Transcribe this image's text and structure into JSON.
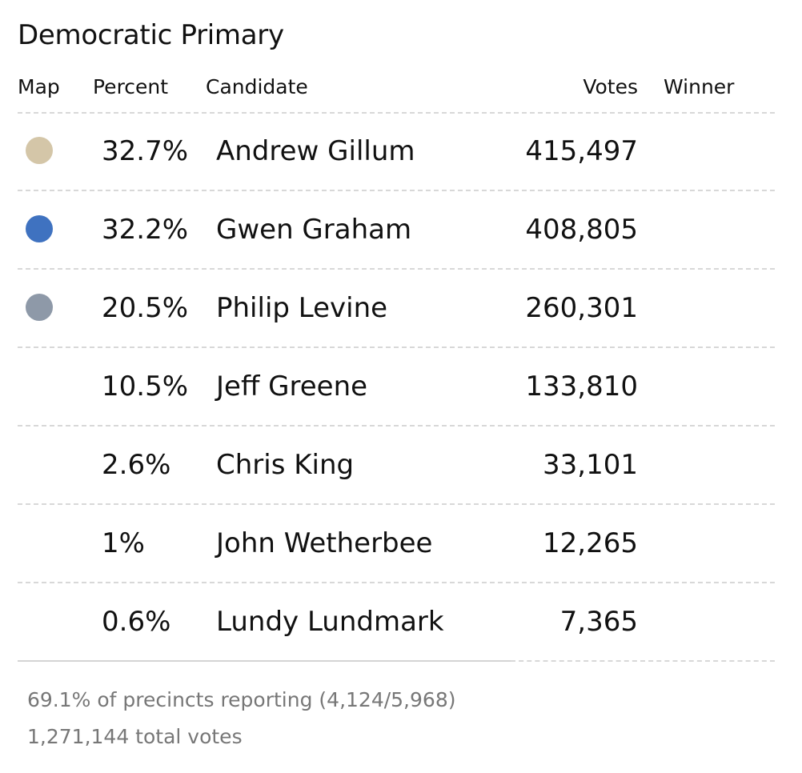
{
  "title": "Democratic Primary",
  "columns": {
    "map": "Map",
    "percent": "Percent",
    "candidate": "Candidate",
    "votes": "Votes",
    "winner": "Winner"
  },
  "colors": {
    "gillum": "#d4c6a8",
    "graham": "#3f72c0",
    "levine": "#8e99a8",
    "separator": "#d8d8d8",
    "footer_text": "#777777"
  },
  "candidates": [
    {
      "percent": "32.7%",
      "name": "Andrew Gillum",
      "votes": "415,497",
      "winner": "",
      "map_color": "#d4c6a8"
    },
    {
      "percent": "32.2%",
      "name": "Gwen Graham",
      "votes": "408,805",
      "winner": "",
      "map_color": "#3f72c0"
    },
    {
      "percent": "20.5%",
      "name": "Philip Levine",
      "votes": "260,301",
      "winner": "",
      "map_color": "#8e99a8"
    },
    {
      "percent": "10.5%",
      "name": "Jeff Greene",
      "votes": "133,810",
      "winner": "",
      "map_color": ""
    },
    {
      "percent": "2.6%",
      "name": "Chris King",
      "votes": "33,101",
      "winner": "",
      "map_color": ""
    },
    {
      "percent": "1%",
      "name": "John Wetherbee",
      "votes": "12,265",
      "winner": "",
      "map_color": ""
    },
    {
      "percent": "0.6%",
      "name": "Lundy Lundmark",
      "votes": "7,365",
      "winner": "",
      "map_color": ""
    }
  ],
  "footer": {
    "precincts": "69.1% of precincts reporting (4,124/5,968)",
    "total_votes": "1,271,144 total votes"
  }
}
